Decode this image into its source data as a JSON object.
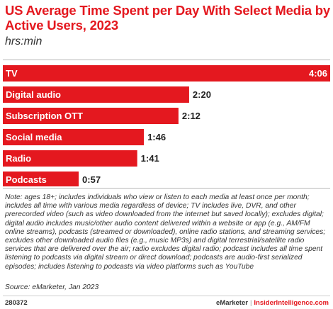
{
  "header": {
    "title": "US Average Time Spent per Day With Select Media by Active Users, 2023",
    "subtitle": "hrs:min"
  },
  "chart_data": {
    "type": "bar",
    "orientation": "horizontal",
    "title": "US Average Time Spent per Day With Select Media by Active Users, 2023",
    "subtitle": "hrs:min",
    "unit": "hrs:min",
    "categories": [
      "TV",
      "Digital audio",
      "Subscription OTT",
      "Social media",
      "Radio",
      "Podcasts"
    ],
    "value_labels": [
      "4:06",
      "2:20",
      "2:12",
      "1:46",
      "1:41",
      "0:57"
    ],
    "values_minutes": [
      246,
      140,
      132,
      106,
      101,
      57
    ],
    "colors": {
      "bar": "#e4181f",
      "bar_text": "#ffffff",
      "value_text": "#222222"
    },
    "grid": false,
    "legend": "none"
  },
  "note": "Note: ages 18+; includes individuals who view or listen to each media at least once per month; includes all time with various media regardless of device; TV includes live, DVR, and other prerecorded video (such as video downloaded from the internet but saved locally); excludes digital; digital audio includes music/other audio content delivered within a website or app (e.g., AM/FM online streams), podcasts (streamed or downloaded), online radio stations, and streaming services; excludes other downloaded audio files (e.g., music MP3s) and digital terrestrial/satellite radio services that are delivered over the air; radio excludes digital radio; podcast includes all time spent listening to podcasts via digital stream or direct download; podcasts are audio-first serialized episodes; includes listening to podcasts via video platforms such as YouTube",
  "source": "Source: eMarketer, Jan 2023",
  "footer": {
    "chart_id": "280372",
    "brand": "eMarketer",
    "separator": "|",
    "site": "InsiderIntelligence.com"
  }
}
